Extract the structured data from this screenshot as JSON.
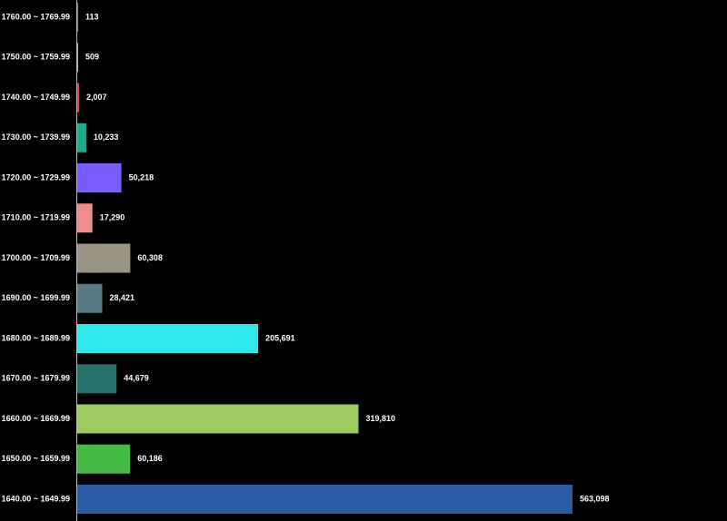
{
  "chart_data": {
    "type": "bar",
    "orientation": "horizontal",
    "categories": [
      "1760.00 ~ 1769.99",
      "1750.00 ~ 1759.99",
      "1740.00 ~ 1749.99",
      "1730.00 ~ 1739.99",
      "1720.00 ~ 1729.99",
      "1710.00 ~ 1719.99",
      "1700.00 ~ 1709.99",
      "1690.00 ~ 1699.99",
      "1680.00 ~ 1689.99",
      "1670.00 ~ 1679.99",
      "1660.00 ~ 1669.99",
      "1650.00 ~ 1659.99",
      "1640.00 ~ 1649.99"
    ],
    "values": [
      113,
      509,
      2007,
      10233,
      50218,
      17290,
      60308,
      28421,
      205691,
      44679,
      319810,
      60186,
      563098
    ],
    "value_labels": [
      "113",
      "509",
      "2,007",
      "10,233",
      "50,218",
      "17,290",
      "60,308",
      "28,421",
      "205,691",
      "44,679",
      "319,810",
      "60,186",
      "563,098"
    ],
    "colors": [
      "#2e9bd6",
      "#e8b21e",
      "#e0483e",
      "#16b08e",
      "#7b5cff",
      "#f08c8c",
      "#9a9585",
      "#587a88",
      "#2ee8ec",
      "#25706a",
      "#9ccc60",
      "#44bb44",
      "#2a5ca3"
    ],
    "xlim": [
      0,
      563098
    ],
    "grid": false,
    "title": "",
    "xlabel": "",
    "ylabel": ""
  }
}
